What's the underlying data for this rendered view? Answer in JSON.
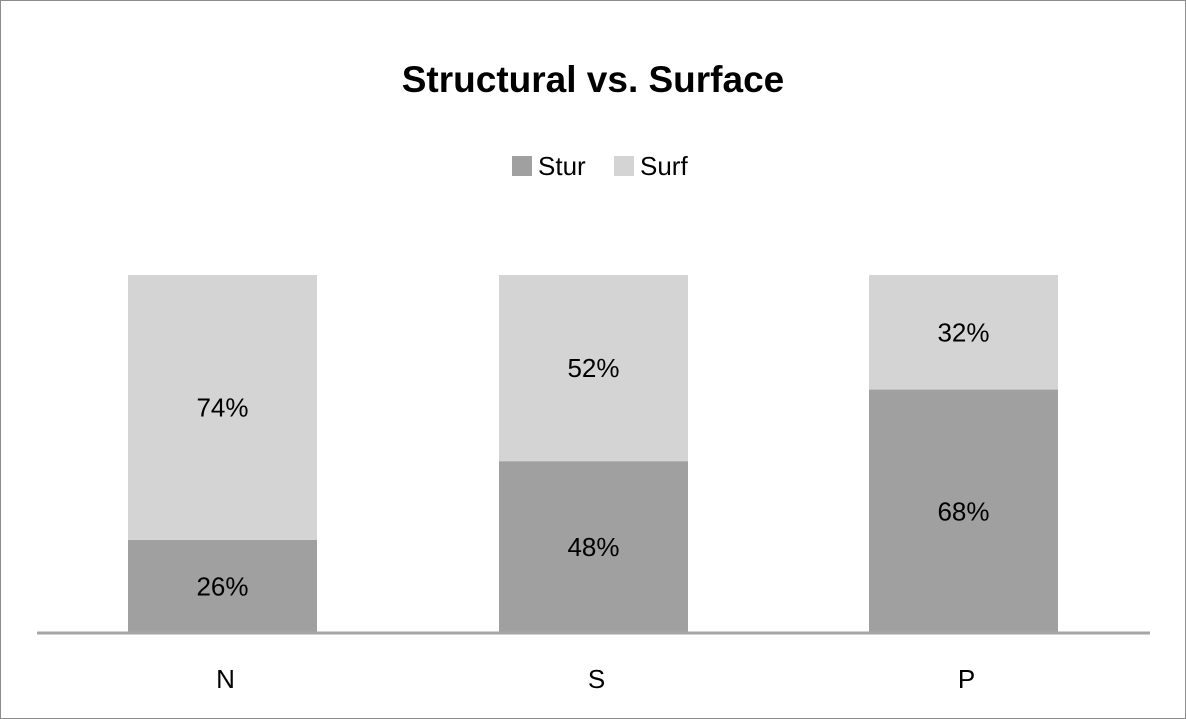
{
  "chart_data": {
    "type": "bar",
    "stacked": true,
    "percent_stacked": true,
    "title": "Structural vs. Surface",
    "categories": [
      "N",
      "S",
      "P"
    ],
    "series": [
      {
        "name": "Stur",
        "values": [
          26,
          48,
          68
        ],
        "labels": [
          "26%",
          "48%",
          "68%"
        ],
        "color": "#a0a0a0"
      },
      {
        "name": "Surf",
        "values": [
          74,
          52,
          32
        ],
        "labels": [
          "74%",
          "52%",
          "32%"
        ],
        "color": "#d4d4d4"
      }
    ],
    "ylim": [
      0,
      100
    ],
    "grid": false,
    "legend_position": "top-center",
    "axis_color": "#a6a6a6"
  }
}
